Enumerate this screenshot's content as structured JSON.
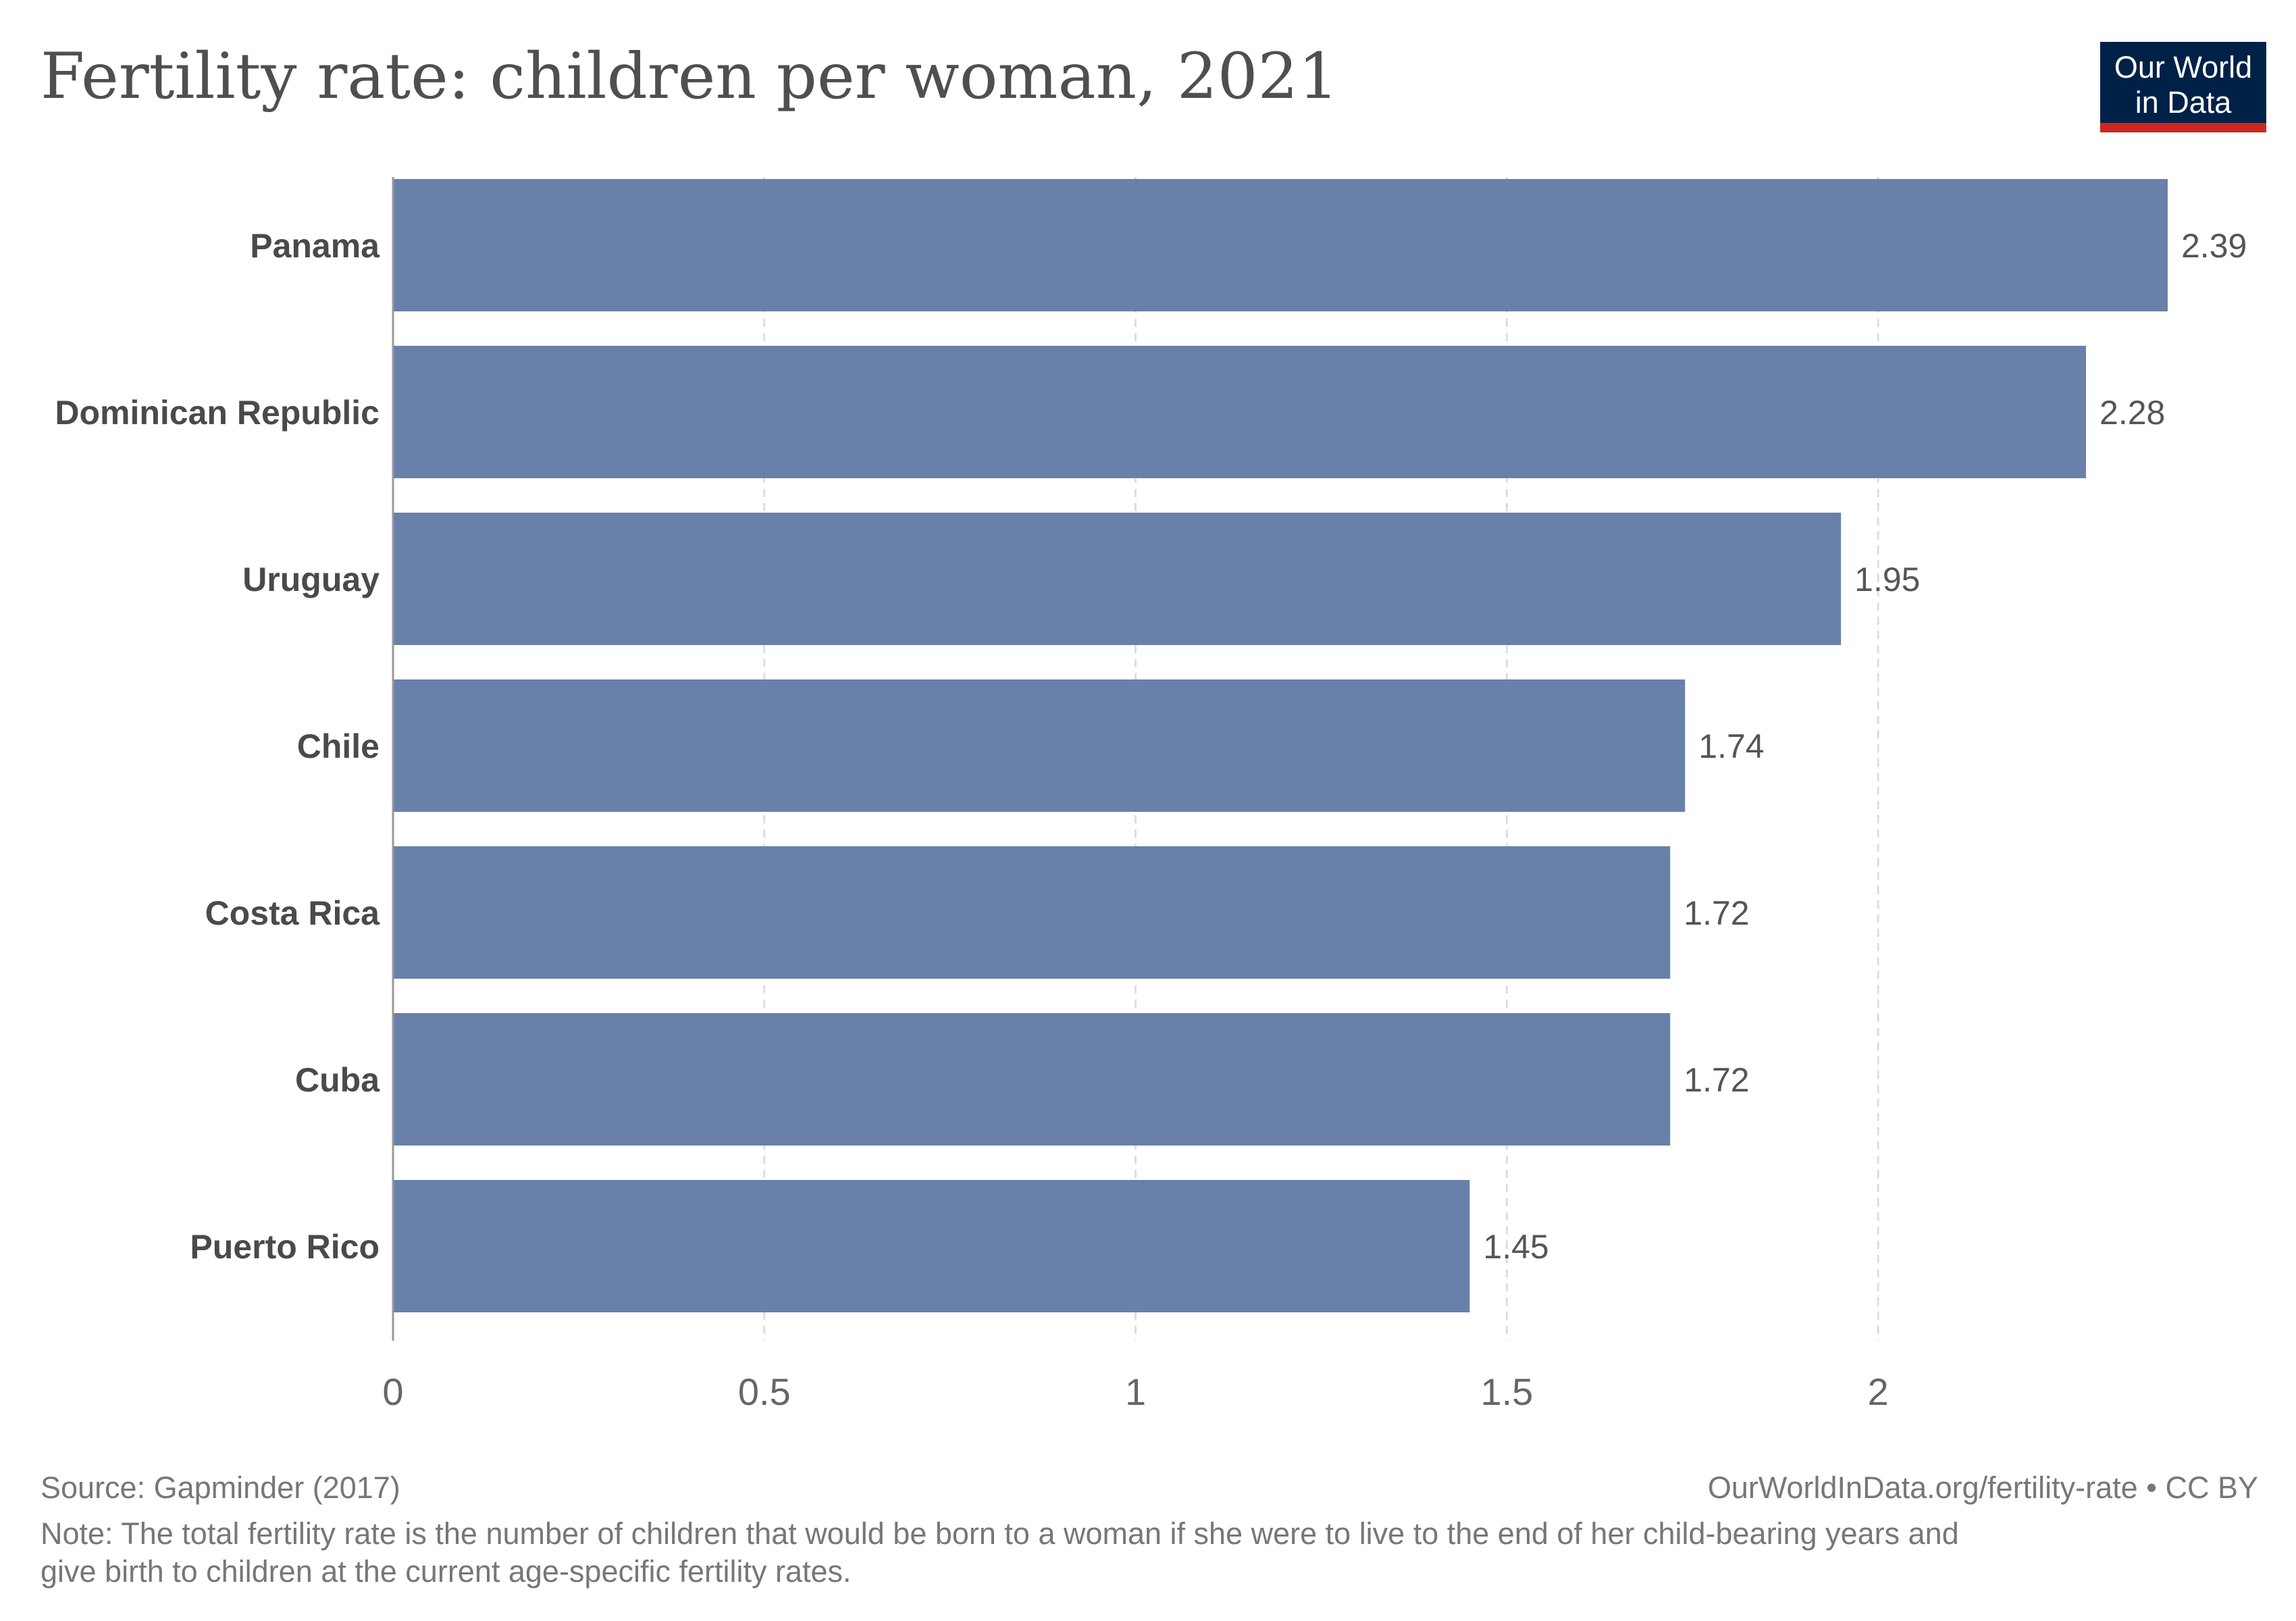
{
  "chart_data": {
    "type": "bar",
    "orientation": "horizontal",
    "title": "Fertility rate: children per woman, 2021",
    "categories": [
      "Panama",
      "Dominican Republic",
      "Uruguay",
      "Chile",
      "Costa Rica",
      "Cuba",
      "Puerto Rico"
    ],
    "values": [
      2.39,
      2.28,
      1.95,
      1.74,
      1.72,
      1.72,
      1.45
    ],
    "value_labels": [
      "2.39",
      "2.28",
      "1.95",
      "1.74",
      "1.72",
      "1.72",
      "1.45"
    ],
    "xlim": [
      0,
      2.39
    ],
    "xticks": [
      0,
      0.5,
      1,
      1.5,
      2
    ],
    "xtick_labels": [
      "0",
      "0.5",
      "1",
      "1.5",
      "2"
    ],
    "grid": "vertical dashed",
    "bar_color": "#6880aa"
  },
  "logo": {
    "line1": "Our World",
    "line2": "in Data",
    "bg_color": "#002147",
    "accent_color": "#ce261e"
  },
  "footer": {
    "source": "Source: Gapminder (2017)",
    "link": "OurWorldInData.org/fertility-rate • CC BY",
    "note_line1": "Note: The total fertility rate is the number of children that would be born to a woman if she were to live to the end of her child-bearing years and",
    "note_line2": "give birth to children at the current age-specific fertility rates."
  }
}
